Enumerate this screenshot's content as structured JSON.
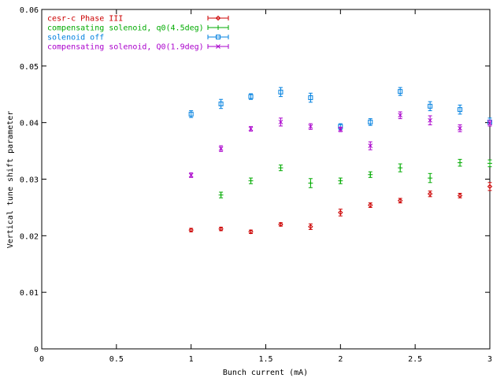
{
  "chart_data": {
    "type": "scatter",
    "xlabel": "Bunch current (mA)",
    "ylabel": "Vertical tune shift parameter",
    "xlim": [
      0,
      3
    ],
    "ylim": [
      0,
      0.06
    ],
    "x_ticks": [
      "0",
      "0.5",
      "1",
      "1.5",
      "2",
      "2.5",
      "3"
    ],
    "y_ticks": [
      "0",
      "0.01",
      "0.02",
      "0.03",
      "0.04",
      "0.05",
      "0.06"
    ],
    "x_tick_values": [
      0,
      0.5,
      1,
      1.5,
      2,
      2.5,
      3
    ],
    "y_tick_values": [
      0,
      0.01,
      0.02,
      0.03,
      0.04,
      0.05,
      0.06
    ],
    "grid": false,
    "legend_position": "top-left",
    "series": [
      {
        "name": "cesr-c Phase III",
        "color": "#cc0000",
        "marker": "diamond",
        "x": [
          1.0,
          1.2,
          1.4,
          1.6,
          1.8,
          2.0,
          2.2,
          2.4,
          2.6,
          2.8,
          3.0
        ],
        "y": [
          0.021,
          0.0212,
          0.0207,
          0.022,
          0.0216,
          0.0241,
          0.0254,
          0.0262,
          0.0274,
          0.0271,
          0.0287
        ],
        "err": [
          0.0003,
          0.0003,
          0.0003,
          0.0003,
          0.0005,
          0.0006,
          0.0004,
          0.0004,
          0.0005,
          0.0004,
          0.0007
        ]
      },
      {
        "name": "compensating solenoid, q0(4.5deg)",
        "color": "#00aa00",
        "marker": "plus",
        "x": [
          1.2,
          1.4,
          1.6,
          1.8,
          2.0,
          2.2,
          2.4,
          2.6,
          2.8,
          3.0
        ],
        "y": [
          0.0272,
          0.0297,
          0.032,
          0.0293,
          0.0297,
          0.0308,
          0.032,
          0.0302,
          0.0329,
          0.0328
        ],
        "err": [
          0.0005,
          0.0005,
          0.0005,
          0.0008,
          0.0005,
          0.0005,
          0.0007,
          0.0008,
          0.0006,
          0.0006
        ]
      },
      {
        "name": "solenoid off",
        "color": "#0080e0",
        "marker": "square",
        "x": [
          1.0,
          1.2,
          1.4,
          1.6,
          1.8,
          2.0,
          2.2,
          2.4,
          2.6,
          2.8,
          3.0
        ],
        "y": [
          0.0415,
          0.0433,
          0.0446,
          0.0454,
          0.0444,
          0.0393,
          0.0401,
          0.0455,
          0.0429,
          0.0423,
          0.0401
        ],
        "err": [
          0.0006,
          0.0008,
          0.0005,
          0.0008,
          0.0008,
          0.0005,
          0.0006,
          0.0007,
          0.0008,
          0.0008,
          0.0007
        ]
      },
      {
        "name": "compensating solenoid, Q0(1.9deg)",
        "color": "#aa00cc",
        "marker": "cross",
        "x": [
          1.0,
          1.2,
          1.4,
          1.6,
          1.8,
          2.0,
          2.2,
          2.4,
          2.6,
          2.8,
          3.0
        ],
        "y": [
          0.0307,
          0.0354,
          0.0389,
          0.0401,
          0.0393,
          0.0388,
          0.0359,
          0.0413,
          0.0404,
          0.039,
          0.0399
        ],
        "err": [
          0.0004,
          0.0005,
          0.0004,
          0.0007,
          0.0005,
          0.0004,
          0.0007,
          0.0006,
          0.0008,
          0.0006,
          0.0005
        ]
      }
    ]
  }
}
